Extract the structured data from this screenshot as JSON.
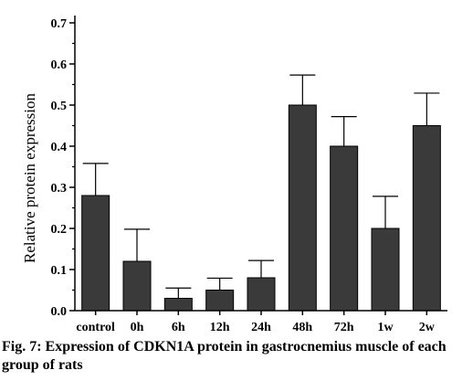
{
  "caption": "Fig. 7: Expression of CDKN1A protein in gastrocnemius muscle of each group of rats",
  "chart_data": {
    "type": "bar",
    "categories": [
      "control",
      "0h",
      "6h",
      "12h",
      "24h",
      "48h",
      "72h",
      "1w",
      "2w"
    ],
    "values": [
      0.28,
      0.12,
      0.03,
      0.05,
      0.08,
      0.5,
      0.4,
      0.2,
      0.45
    ],
    "error_upper": [
      0.078,
      0.078,
      0.025,
      0.029,
      0.042,
      0.073,
      0.072,
      0.078,
      0.079
    ],
    "ylabel": "Relative protein expression",
    "xlabel": "",
    "ylim": [
      0,
      0.7
    ],
    "yticks": [
      "0.0",
      "0.1",
      "0.2",
      "0.3",
      "0.4",
      "0.5",
      "0.6",
      "0.7"
    ],
    "grid": false,
    "bar_color": "#3a3a3a"
  }
}
